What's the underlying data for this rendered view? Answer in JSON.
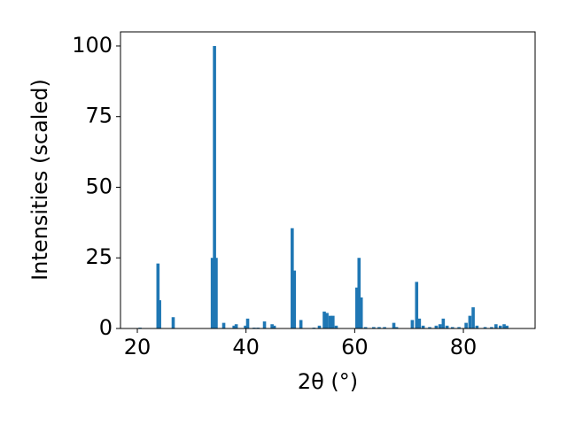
{
  "chart_data": {
    "type": "bar",
    "x_label": "2θ (°)",
    "y_label": "Intensities (scaled)",
    "x": [
      20.5,
      23.8,
      24.1,
      26.6,
      33.8,
      34.2,
      34.5,
      35.9,
      37.8,
      38.2,
      39.9,
      40.3,
      41.5,
      42.2,
      43.4,
      44.8,
      45.2,
      48.5,
      48.9,
      50.1,
      52.5,
      53.5,
      54.4,
      54.9,
      55.5,
      56.0,
      56.6,
      60.4,
      60.8,
      61.2,
      62.0,
      63.5,
      64.5,
      65.5,
      67.2,
      67.7,
      70.6,
      71.4,
      71.9,
      72.6,
      73.8,
      75.0,
      75.7,
      76.3,
      77.0,
      78.0,
      79.2,
      80.5,
      81.2,
      81.8,
      82.5,
      84.0,
      85.2,
      86.0,
      86.8,
      87.5,
      88.0
    ],
    "values": [
      0.3,
      23,
      10,
      4,
      25,
      100,
      25,
      2,
      1,
      1.5,
      1,
      3.5,
      0.3,
      0.3,
      2.5,
      1.5,
      1,
      35.5,
      20.5,
      3,
      0.3,
      1,
      6,
      5.5,
      4.5,
      4.5,
      1,
      14.5,
      25,
      11,
      0.5,
      0.5,
      0.5,
      0.5,
      2,
      0.5,
      3,
      16.5,
      3.5,
      1,
      0.5,
      1,
      1.5,
      3.5,
      1,
      0.5,
      0.5,
      2,
      4.5,
      7.5,
      1,
      0.5,
      0.5,
      1.5,
      1,
      1.5,
      1
    ],
    "color": "#1f77b4",
    "xlim": [
      16.9,
      93.2
    ],
    "xticks": [
      20,
      40,
      60,
      80
    ],
    "ylim": [
      0,
      105
    ],
    "yticks": [
      0,
      25,
      50,
      75,
      100
    ]
  }
}
